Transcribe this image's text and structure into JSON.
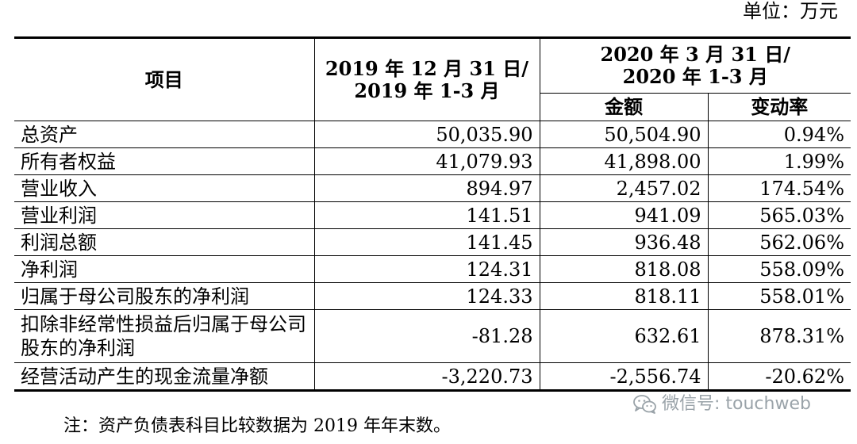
{
  "unit_label": "单位：万元",
  "table": {
    "col_item": "项目",
    "col_prev": [
      "2019 年 12 月 31 日/",
      "2019 年 1-3 月"
    ],
    "col_curr": [
      "2020 年 3 月 31 日/",
      "2020 年 1-3 月"
    ],
    "col_amount": "金额",
    "col_change": "变动率",
    "rows": [
      {
        "item": "总资产",
        "prev": "50,035.90",
        "amount": "50,504.90",
        "change": "0.94%"
      },
      {
        "item": "所有者权益",
        "prev": "41,079.93",
        "amount": "41,898.00",
        "change": "1.99%"
      },
      {
        "item": "营业收入",
        "prev": "894.97",
        "amount": "2,457.02",
        "change": "174.54%"
      },
      {
        "item": "营业利润",
        "prev": "141.51",
        "amount": "941.09",
        "change": "565.03%"
      },
      {
        "item": "利润总额",
        "prev": "141.45",
        "amount": "936.48",
        "change": "562.06%"
      },
      {
        "item": "净利润",
        "prev": "124.31",
        "amount": "818.08",
        "change": "558.09%"
      },
      {
        "item": "归属于母公司股东的净利润",
        "prev": "124.33",
        "amount": "818.11",
        "change": "558.01%"
      },
      {
        "item": "扣除非经常性损益后归属于母公司股东的净利润",
        "prev": "-81.28",
        "amount": "632.61",
        "change": "878.31%"
      },
      {
        "item": "经营活动产生的现金流量净额",
        "prev": "-3,220.73",
        "amount": "-2,556.74",
        "change": "-20.62%"
      }
    ]
  },
  "note": "注：资产负债表科目比较数据为 2019 年年末数。",
  "watermark": {
    "text": "微信号: touchweb",
    "icon": "wechat-icon",
    "color": "#9aa3a9"
  }
}
